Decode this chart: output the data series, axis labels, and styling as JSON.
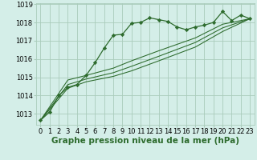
{
  "background_color": "#d4eee8",
  "grid_color": "#aaccbb",
  "line_color": "#2d6b2d",
  "series": {
    "main": [
      [
        0,
        1012.65
      ],
      [
        1,
        1013.1
      ],
      [
        2,
        1014.0
      ],
      [
        3,
        1014.45
      ],
      [
        4,
        1014.6
      ],
      [
        5,
        1015.1
      ],
      [
        6,
        1015.8
      ],
      [
        7,
        1016.6
      ],
      [
        8,
        1017.3
      ],
      [
        9,
        1017.35
      ],
      [
        10,
        1017.95
      ],
      [
        11,
        1018.0
      ],
      [
        12,
        1018.25
      ],
      [
        13,
        1018.15
      ],
      [
        14,
        1018.05
      ],
      [
        15,
        1017.75
      ],
      [
        16,
        1017.6
      ],
      [
        17,
        1017.75
      ],
      [
        18,
        1017.85
      ],
      [
        19,
        1018.0
      ],
      [
        20,
        1018.6
      ],
      [
        21,
        1018.1
      ],
      [
        22,
        1018.4
      ],
      [
        23,
        1018.2
      ]
    ],
    "line2": [
      [
        0,
        1012.65
      ],
      [
        3,
        1014.85
      ],
      [
        5,
        1015.1
      ],
      [
        8,
        1015.5
      ],
      [
        10,
        1015.9
      ],
      [
        13,
        1016.45
      ],
      [
        17,
        1017.15
      ],
      [
        20,
        1017.9
      ],
      [
        23,
        1018.2
      ]
    ],
    "line3": [
      [
        0,
        1012.65
      ],
      [
        3,
        1014.6
      ],
      [
        5,
        1014.9
      ],
      [
        8,
        1015.25
      ],
      [
        10,
        1015.6
      ],
      [
        13,
        1016.15
      ],
      [
        17,
        1016.9
      ],
      [
        20,
        1017.7
      ],
      [
        23,
        1018.2
      ]
    ],
    "line4": [
      [
        0,
        1012.65
      ],
      [
        3,
        1014.4
      ],
      [
        5,
        1014.75
      ],
      [
        8,
        1015.05
      ],
      [
        10,
        1015.35
      ],
      [
        13,
        1015.9
      ],
      [
        17,
        1016.65
      ],
      [
        20,
        1017.5
      ],
      [
        23,
        1018.2
      ]
    ]
  },
  "ylim": [
    1012.4,
    1019.05
  ],
  "yticks": [
    1013,
    1014,
    1015,
    1016,
    1017,
    1018,
    1019
  ],
  "xlim": [
    -0.5,
    23.5
  ],
  "xticks": [
    0,
    1,
    2,
    3,
    4,
    5,
    6,
    7,
    8,
    9,
    10,
    11,
    12,
    13,
    14,
    15,
    16,
    17,
    18,
    19,
    20,
    21,
    22,
    23
  ],
  "xlabel": "Graphe pression niveau de la mer (hPa)",
  "xlabel_fontsize": 7.5,
  "tick_fontsize": 6.0,
  "marker": "D",
  "markersize": 2.2,
  "linewidth": 0.9
}
